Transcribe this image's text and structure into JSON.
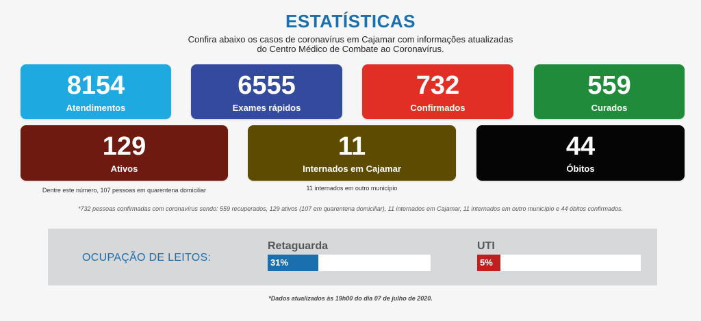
{
  "header": {
    "title": "ESTATÍSTICAS",
    "subtitle_line1": "Confira abaixo os casos de coronavírus em Cajamar com informações atualizadas",
    "subtitle_line2": "do Centro Médico de Combate ao Coronavírus."
  },
  "cards_top": [
    {
      "value": "8154",
      "label": "Atendimentos",
      "color": "#1fa9e1"
    },
    {
      "value": "6555",
      "label": "Exames rápidos",
      "color": "#334a9e"
    },
    {
      "value": "732",
      "label": "Confirmados",
      "color": "#e22f25"
    },
    {
      "value": "559",
      "label": "Curados",
      "color": "#218b3c"
    }
  ],
  "cards_bottom": [
    {
      "value": "129",
      "label": "Ativos",
      "color": "#6e1a10",
      "note": "Dentre este número, 107 pessoas em quarentena domiciliar"
    },
    {
      "value": "11",
      "label": "Internados em Cajamar",
      "color": "#5c4b00",
      "note": "11 internados em outro município"
    },
    {
      "value": "44",
      "label": "Óbitos",
      "color": "#050505",
      "note": ""
    }
  ],
  "footnote": "*732 pessoas confirmadas com coronavírus sendo: 559 recuperados, 129 ativos (107 em quarentena domiciliar), 11 internados em Cajamar, 11 internados em outro município e 44 óbitos confirmados.",
  "occupancy": {
    "title": "OCUPAÇÃO DE LEITOS:",
    "bars": [
      {
        "label": "Retaguarda",
        "percent_text": "31%",
        "fraction": 0.31,
        "color": "#1a6fae"
      },
      {
        "label": "UTI",
        "percent_text": "5%",
        "fraction": 0.05,
        "color": "#c0201d"
      }
    ]
  },
  "updated": "*Dados atualizados às 19h00 do dia 07 de julho de 2020."
}
